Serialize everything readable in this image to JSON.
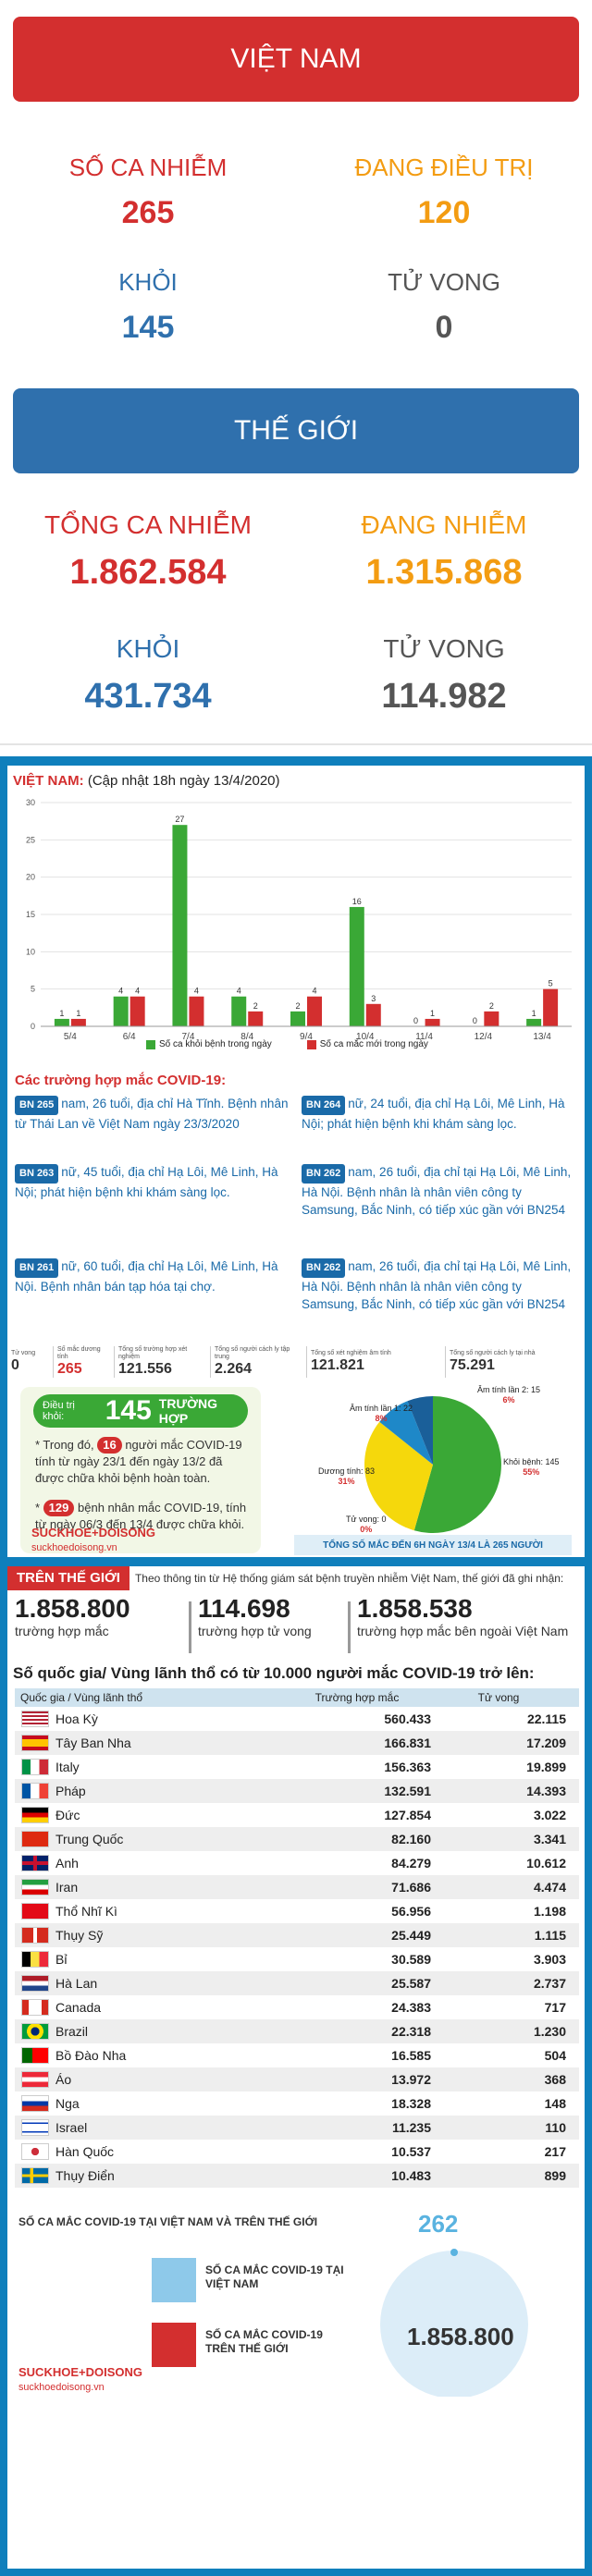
{
  "vietnam": {
    "banner": "VIỆT NAM",
    "infected_label": "SỐ CA NHIỄM",
    "infected": "265",
    "treating_label": "ĐANG ĐIỀU TRỊ",
    "treating": "120",
    "recovered_label": "KHỎI",
    "recovered": "145",
    "deaths_label": "TỬ VONG",
    "deaths": "0"
  },
  "world": {
    "banner": "THẾ GIỚI",
    "total_label": "TỔNG CA NHIỄM",
    "total": "1.862.584",
    "active_label": "ĐANG NHIỄM",
    "active": "1.315.868",
    "recovered_label": "KHỎI",
    "recovered": "431.734",
    "deaths_label": "TỬ VONG",
    "deaths": "114.982"
  },
  "colors": {
    "red": "#d32f2f",
    "orange": "#f39c12",
    "blue": "#2f70ad",
    "green": "#3aa836",
    "info_bg": "#0f7fbc"
  },
  "infographic": {
    "vn_label": "VIỆT NAM:",
    "vn_update": "(Cập nhật 18h ngày 13/4/2020)",
    "legend_recovered": "Số ca khỏi bệnh trong ngày",
    "legend_new": "Số ca mắc mới trong ngày",
    "cases_title": "Các trường hợp mắc COVID-19:",
    "patients": [
      {
        "id": "BN 265",
        "text": "nam, 26 tuổi, địa chỉ Hà Tĩnh. Bệnh nhân từ Thái Lan về Việt Nam ngày 23/3/2020"
      },
      {
        "id": "BN 264",
        "text": "nữ, 24 tuổi, địa chỉ Hạ Lôi, Mê Linh, Hà Nội; phát hiện bệnh khi khám sàng lọc."
      },
      {
        "id": "BN 263",
        "text": "nữ, 45 tuổi, địa chỉ Hạ Lôi, Mê Linh, Hà Nội; phát hiện bệnh khi khám sàng lọc."
      },
      {
        "id": "BN 262",
        "text": "nam, 26 tuổi, địa chỉ tại Hạ Lôi, Mê Linh, Hà Nội. Bệnh nhân là nhân viên công ty Samsung, Bắc Ninh, có tiếp xúc gần với BN254"
      },
      {
        "id": "BN 261",
        "text": "nữ, 60 tuổi, địa chỉ Hạ Lôi, Mê Linh, Hà Nội. Bệnh nhân bán tạp hóa tại chợ."
      },
      {
        "id": "BN 262",
        "text": "nam, 26 tuổi, địa chỉ tại Hạ Lôi, Mê Linh, Hà Nội. Bệnh nhân là nhân viên công ty Samsung, Bắc Ninh, có tiếp xúc gần với BN254"
      }
    ],
    "strip": [
      {
        "label": "Tử vong",
        "value": "0"
      },
      {
        "label": "Số mắc dương tính",
        "value": "265"
      },
      {
        "label": "Tổng số trường hợp xét nghiệm",
        "value": "121.556"
      },
      {
        "label": "Tổng số người cách ly tập trung",
        "value": "2.264"
      },
      {
        "label": "Tổng số xét nghiệm âm tính",
        "value": "121.821"
      },
      {
        "label": "Tổng số người cách ly tại nhà",
        "value": "75.291"
      }
    ],
    "recovered_prefix": "Điều trị khỏi:",
    "recovered_value": "145",
    "recovered_suffix": "TRƯỜNG HỢP",
    "note1_a": "* Trong đó,",
    "note1_n": "16",
    "note1_b": "người mắc COVID-19 tính từ ngày 23/1 đến ngày 13/2 đã được chữa khỏi bệnh hoàn toàn.",
    "note2_n": "129",
    "note2_b": "bệnh nhân mắc COVID-19, tính từ ngày 06/3 đến 13/4 được chữa khỏi.",
    "brand": "SUCKHOE+DOISONG",
    "brand_url": "suckhoedoisong.vn",
    "pie_caption": "TỔNG SỐ MẮC ĐẾN 6H NGÀY 13/4 LÀ 265 NGƯỜI",
    "pie_labels": [
      {
        "name": "Âm tính lần 2: 15",
        "pct": "6%"
      },
      {
        "name": "Âm tính lần 1: 22",
        "pct": "8%"
      },
      {
        "name": "Khỏi bệnh: 145",
        "pct": "55%"
      },
      {
        "name": "Dương tính: 83",
        "pct": "31%"
      },
      {
        "name": "Tử vong: 0",
        "pct": "0%"
      }
    ]
  },
  "chart_data": {
    "type": "bar",
    "categories": [
      "5/4",
      "6/4",
      "7/4",
      "8/4",
      "9/4",
      "10/4",
      "11/4",
      "12/4",
      "13/4"
    ],
    "series": [
      {
        "name": "Số ca khỏi bệnh trong ngày",
        "color": "#3aa836",
        "values": [
          1,
          4,
          27,
          4,
          2,
          16,
          0,
          0,
          1
        ]
      },
      {
        "name": "Số ca mắc mới trong ngày",
        "color": "#d32f2f",
        "values": [
          1,
          4,
          4,
          2,
          4,
          3,
          1,
          2,
          5
        ]
      }
    ],
    "yticks": [
      "0",
      "5",
      "10",
      "15",
      "20",
      "25",
      "30"
    ],
    "ylim": [
      0,
      30
    ]
  },
  "world_section": {
    "tag": "TRÊN THẾ GIỚI",
    "intro": "Theo thông tin từ Hệ thống giám sát bệnh truyền nhiễm Việt Nam, thế giới đã ghi nhận:",
    "cases_num": "1.858.800",
    "cases_txt": "trường hợp mắc",
    "deaths_num": "114.698",
    "deaths_txt": "trường hợp tử vong",
    "outside_num": "1.858.538",
    "outside_txt": "trường hợp mắc bên ngoài Việt Nam",
    "table_title": "Số quốc gia/ Vùng lãnh thổ có từ 10.000 người  mắc COVID-19 trở lên:",
    "headers": {
      "country": "Quốc gia / Vùng lãnh thổ",
      "cases": "Trường hợp mắc",
      "deaths": "Tử vong"
    },
    "rows": [
      {
        "country": "Hoa Kỳ",
        "cases": "560.433",
        "deaths": "22.115",
        "flag": "us-flag"
      },
      {
        "country": "Tây Ban Nha",
        "cases": "166.831",
        "deaths": "17.209",
        "flag": "spain-flag"
      },
      {
        "country": "Italy",
        "cases": "156.363",
        "deaths": "19.899",
        "flag": "italy-flag"
      },
      {
        "country": "Pháp",
        "cases": "132.591",
        "deaths": "14.393",
        "flag": "france-flag"
      },
      {
        "country": "Đức",
        "cases": "127.854",
        "deaths": "3.022",
        "flag": "germany-flag"
      },
      {
        "country": "Trung Quốc",
        "cases": "82.160",
        "deaths": "3.341",
        "flag": "china-flag"
      },
      {
        "country": "Anh",
        "cases": "84.279",
        "deaths": "10.612",
        "flag": "uk-flag"
      },
      {
        "country": "Iran",
        "cases": "71.686",
        "deaths": "4.474",
        "flag": "iran-flag"
      },
      {
        "country": "Thổ Nhĩ Kì",
        "cases": "56.956",
        "deaths": "1.198",
        "flag": "turkey-flag"
      },
      {
        "country": "Thụy Sỹ",
        "cases": "25.449",
        "deaths": "1.115",
        "flag": "switzerland-flag"
      },
      {
        "country": "Bỉ",
        "cases": "30.589",
        "deaths": "3.903",
        "flag": "belgium-flag"
      },
      {
        "country": "Hà Lan",
        "cases": "25.587",
        "deaths": "2.737",
        "flag": "netherlands-flag"
      },
      {
        "country": "Canada",
        "cases": "24.383",
        "deaths": "717",
        "flag": "canada-flag"
      },
      {
        "country": "Brazil",
        "cases": "22.318",
        "deaths": "1.230",
        "flag": "brazil-flag"
      },
      {
        "country": "Bồ Đào Nha",
        "cases": "16.585",
        "deaths": "504",
        "flag": "portugal-flag"
      },
      {
        "country": "Áo",
        "cases": "13.972",
        "deaths": "368",
        "flag": "austria-flag"
      },
      {
        "country": "Nga",
        "cases": "18.328",
        "deaths": "148",
        "flag": "russia-flag"
      },
      {
        "country": "Israel",
        "cases": "11.235",
        "deaths": "110",
        "flag": "israel-flag"
      },
      {
        "country": "Hàn Quốc",
        "cases": "10.537",
        "deaths": "217",
        "flag": "korea-flag"
      },
      {
        "country": "Thụy Điển",
        "cases": "10.483",
        "deaths": "899",
        "flag": "sweden-flag"
      }
    ],
    "bottom_title": "SỐ CA MẮC COVID-19 TẠI VIỆT NAM VÀ TRÊN THẾ GIỚI",
    "key_vn": "SỐ CA MẮC COVID-19 TẠI VIỆT NAM",
    "key_world": "SỐ CA MẮC COVID-19 TRÊN THẾ GIỚI",
    "vn_total": "262",
    "world_total": "1.858.800",
    "brand": "SUCKHOE+DOISONG",
    "brand_url": "suckhoedoisong.vn"
  }
}
